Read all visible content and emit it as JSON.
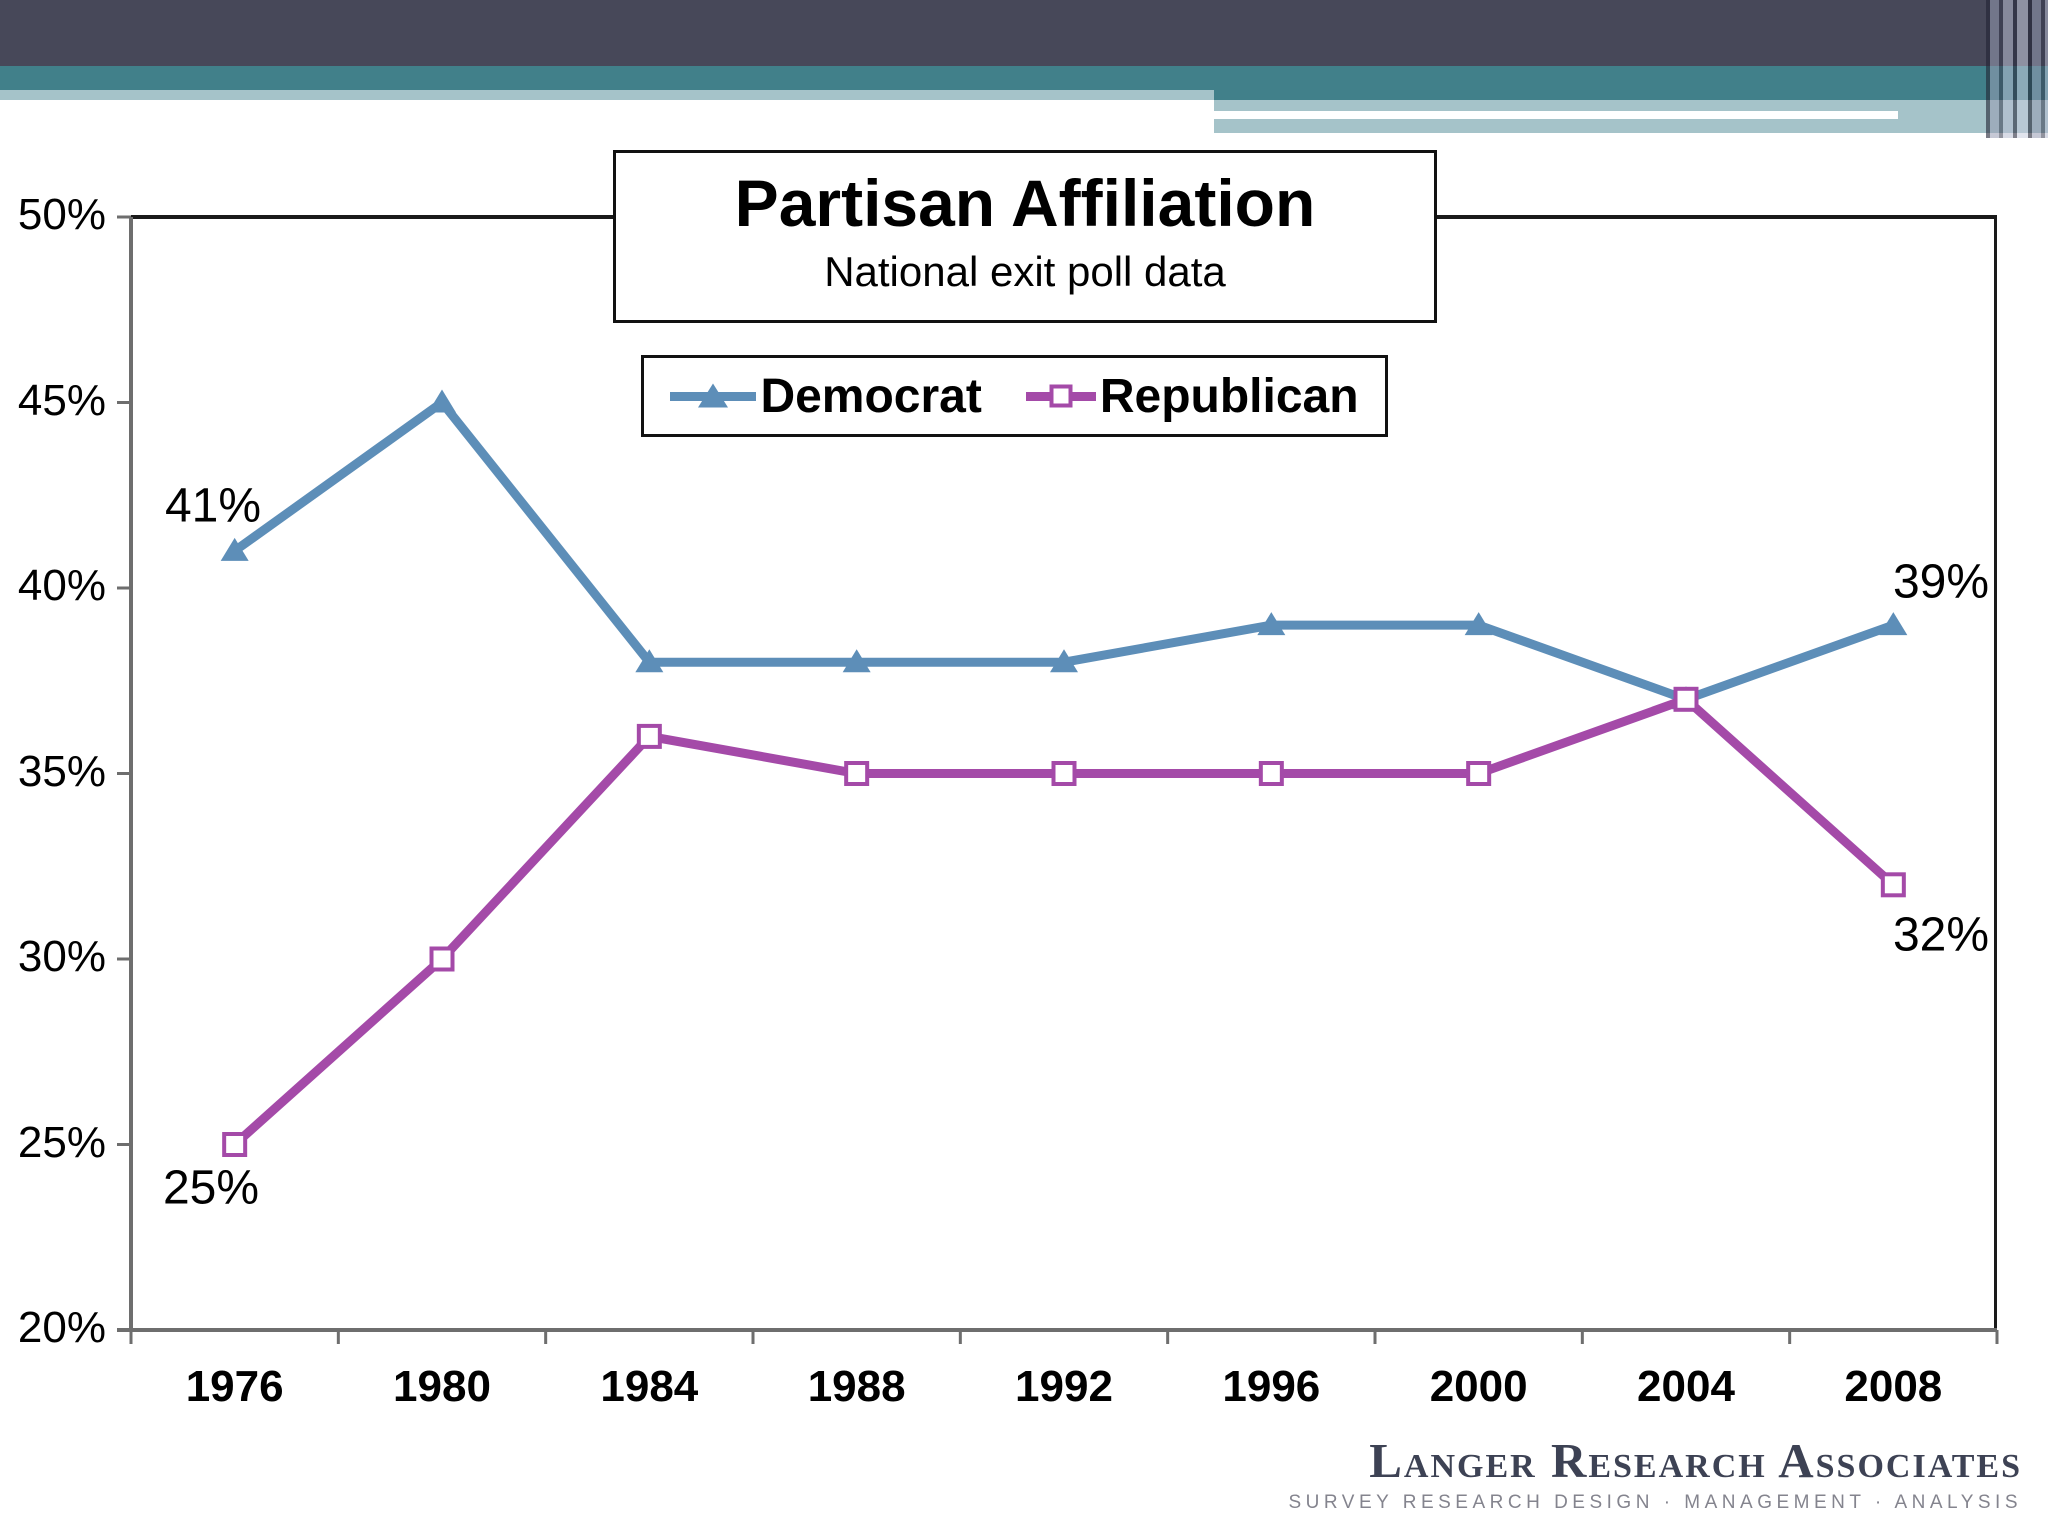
{
  "theme": {
    "header_slate": "#474859",
    "header_teal": "#41808a",
    "header_light": "#a5c3c9",
    "axis_color": "#6e6e6e",
    "plot_border_color": "#1a1a1a",
    "background": "#ffffff"
  },
  "chart_data": {
    "type": "line",
    "title": "Partisan Affiliation",
    "subtitle": "National exit poll data",
    "categories": [
      "1976",
      "1980",
      "1984",
      "1988",
      "1992",
      "1996",
      "2000",
      "2004",
      "2008"
    ],
    "series": [
      {
        "name": "Democrat",
        "color": "#5d8eb8",
        "marker": "triangle",
        "values": [
          41,
          45,
          38,
          38,
          38,
          39,
          39,
          37,
          39
        ]
      },
      {
        "name": "Republican",
        "color": "#a44aa8",
        "marker": "square",
        "marker_fill": "#ffffff",
        "values": [
          25,
          30,
          36,
          35,
          35,
          35,
          35,
          37,
          32
        ]
      }
    ],
    "ylim": [
      20,
      50
    ],
    "yticks": [
      {
        "value": 50,
        "label": "50%"
      },
      {
        "value": 45,
        "label": "45%"
      },
      {
        "value": 40,
        "label": "40%"
      },
      {
        "value": 35,
        "label": "35%"
      },
      {
        "value": 30,
        "label": "30%"
      },
      {
        "value": 25,
        "label": "25%"
      },
      {
        "value": 20,
        "label": "20%"
      }
    ],
    "grid": false,
    "legend_position": "top-center",
    "annotations": [
      {
        "series": "Democrat",
        "category": "1976",
        "label": "41%"
      },
      {
        "series": "Democrat",
        "category": "2008",
        "label": "39%"
      },
      {
        "series": "Republican",
        "category": "1976",
        "label": "25%"
      },
      {
        "series": "Republican",
        "category": "2008",
        "label": "32%"
      }
    ]
  },
  "footer_logo": {
    "line1": "Langer Research Associates",
    "line2": "SURVEY RESEARCH DESIGN · MANAGEMENT · ANALYSIS"
  }
}
